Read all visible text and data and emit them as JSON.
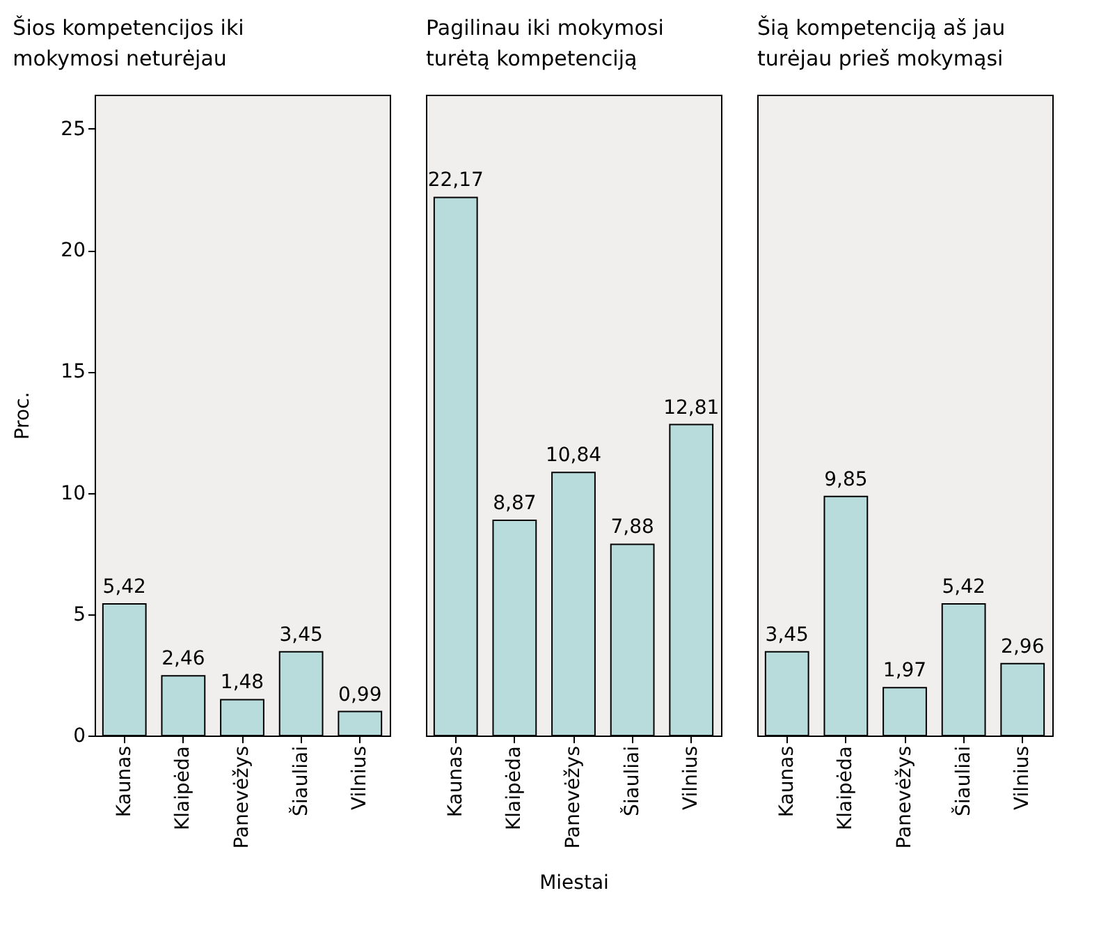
{
  "chart_data": [
    {
      "type": "bar",
      "title": "Šios kompetencijos iki mokymosi neturėjau",
      "ylabel": "Proc.",
      "categories": [
        "Kaunas",
        "Klaipėda",
        "Panevėžys",
        "Šiauliai",
        "Vilnius"
      ],
      "values": [
        5.42,
        2.46,
        1.48,
        3.45,
        0.99
      ],
      "value_labels": [
        "5,42",
        "2,46",
        "1,48",
        "3,45",
        "0,99"
      ],
      "color": "#b8dcdc",
      "ylim": [
        0,
        26.4
      ],
      "yticks": [
        0,
        5,
        10,
        15,
        20,
        25
      ]
    },
    {
      "type": "bar",
      "title": "Pagilinau iki mokymosi turėtą kompetenciją",
      "xlabel": "Miestai",
      "categories": [
        "Kaunas",
        "Klaipėda",
        "Panevėžys",
        "Šiauliai",
        "Vilnius"
      ],
      "values": [
        22.17,
        8.87,
        10.84,
        7.88,
        12.81
      ],
      "value_labels": [
        "22,17",
        "8,87",
        "10,84",
        "7,88",
        "12,81"
      ],
      "color": "#b8dcdc",
      "ylim": [
        0,
        26.4
      ],
      "yticks": [
        0,
        5,
        10,
        15,
        20,
        25
      ],
      "tick_labels": "x"
    },
    {
      "type": "bar",
      "title": "Šią kompetenciją aš jau turėjau prieš mokymąsi",
      "categories": [
        "Kaunas",
        "Klaipėda",
        "Panevėžys",
        "Šiauliai",
        "Vilnius"
      ],
      "values": [
        3.45,
        9.85,
        1.97,
        5.42,
        2.96
      ],
      "value_labels": [
        "3,45",
        "9,85",
        "1,97",
        "5,42",
        "2,96"
      ],
      "color": "#b8dcdc",
      "ylim": [
        0,
        26.4
      ],
      "yticks": [
        0,
        5,
        10,
        15,
        20,
        25
      ],
      "tick_labels": "x"
    }
  ]
}
